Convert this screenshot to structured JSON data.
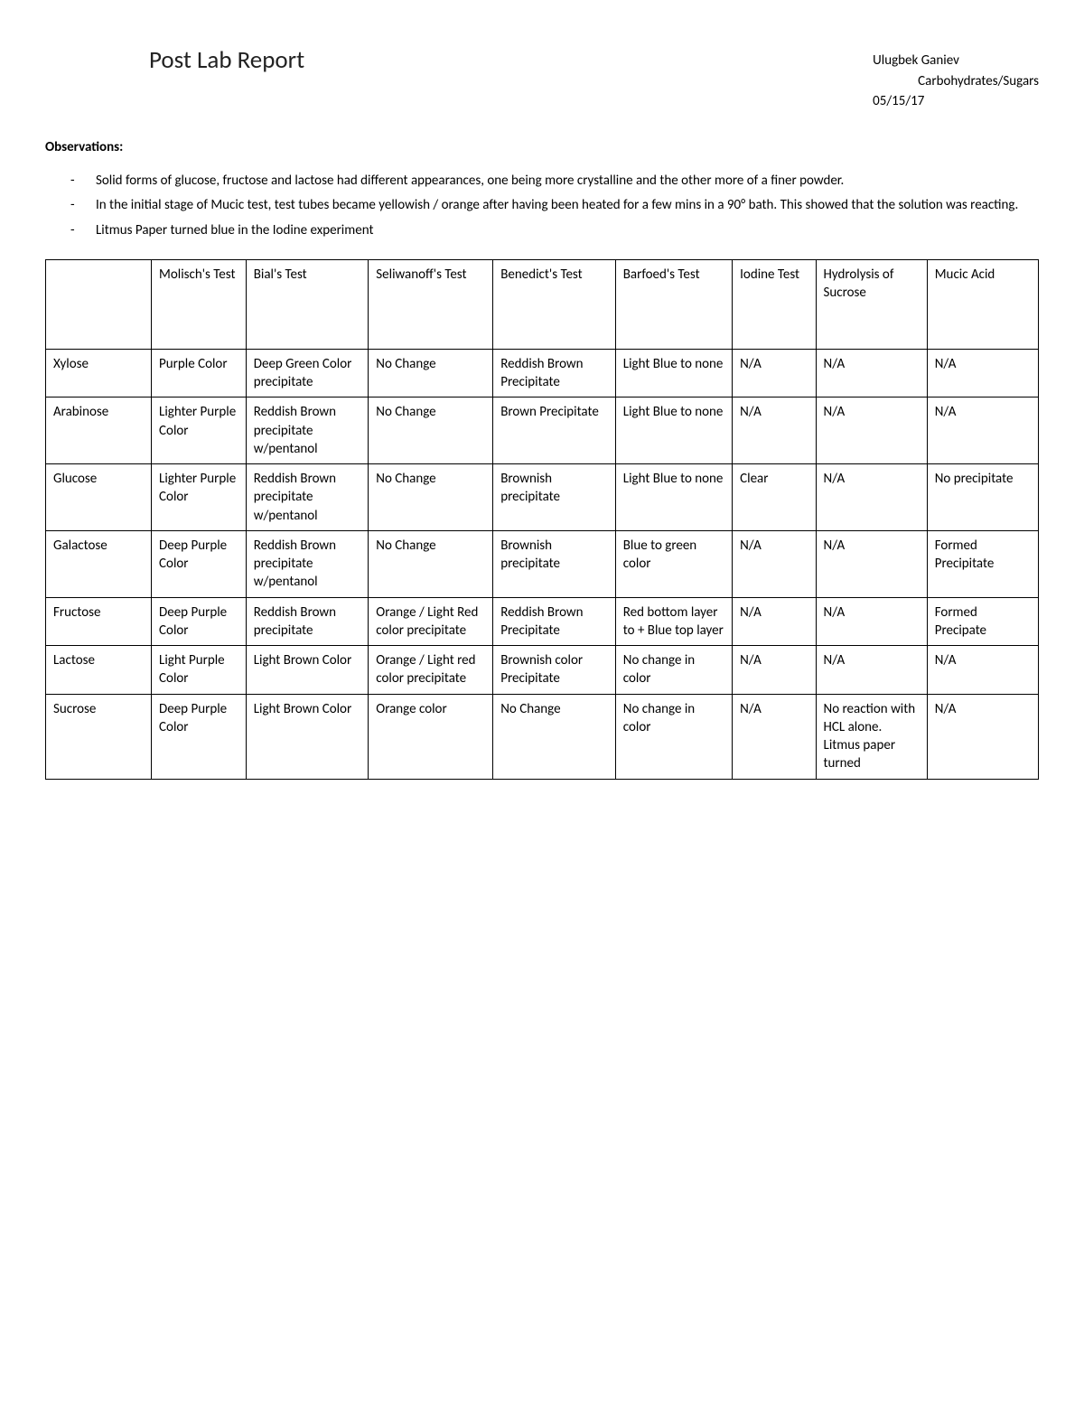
{
  "header": {
    "title": "Post Lab Report",
    "author": "Ulugbek Ganiev",
    "subject": "Carbohydrates/Sugars",
    "date": "05/15/17"
  },
  "observations": {
    "heading": "Observations:",
    "items": [
      "Solid forms of glucose, fructose and lactose had different appearances, one being more crystalline and the other more of a finer powder.",
      "In the initial stage of Mucic test, test tubes became yellowish / orange after having been heated for a few mins in a 90° bath. This showed that the solution was reacting.",
      "Litmus Paper turned blue in the Iodine experiment"
    ]
  },
  "table": {
    "columns": [
      "",
      "Molisch's Test",
      "Bial's Test",
      "Seliwanoff's Test",
      "Benedict's Test",
      "Barfoed's Test",
      "Iodine Test",
      "Hydrolysis of Sucrose",
      "Mucic Acid"
    ],
    "rows": [
      [
        "Xylose",
        "Purple Color",
        "Deep Green Color precipitate",
        "No Change",
        "Reddish Brown Precipitate",
        "Light Blue to none",
        "N/A",
        "N/A",
        "N/A"
      ],
      [
        "Arabinose",
        "Lighter Purple Color",
        "Reddish Brown precipitate w/pentanol",
        "No Change",
        "Brown Precipitate",
        "Light Blue to none",
        "N/A",
        "N/A",
        "N/A"
      ],
      [
        "Glucose",
        "Lighter Purple Color",
        "Reddish Brown precipitate w/pentanol",
        "No Change",
        "Brownish precipitate",
        "Light Blue to none",
        "Clear",
        "N/A",
        "No precipitate"
      ],
      [
        "Galactose",
        "Deep Purple Color",
        "Reddish Brown precipitate w/pentanol",
        "No Change",
        "Brownish precipitate",
        "Blue to green color",
        "N/A",
        "N/A",
        "Formed Precipitate"
      ],
      [
        "Fructose",
        "Deep Purple Color",
        "Reddish Brown precipitate",
        "Orange / Light Red color precipitate",
        "Reddish Brown Precipitate",
        "Red bottom layer to + Blue top layer",
        "N/A",
        "N/A",
        "Formed Precipate"
      ],
      [
        "Lactose",
        "Light Purple Color",
        "Light Brown Color",
        "Orange / Light red color precipitate",
        "Brownish color Precipitate",
        "No change in color",
        "N/A",
        "N/A",
        "N/A"
      ],
      [
        "Sucrose",
        "Deep Purple Color",
        "Light Brown Color",
        "Orange color",
        "No Change",
        "No change in color",
        "N/A",
        "No reaction with HCL alone. Litmus paper turned",
        "N/A"
      ]
    ]
  }
}
